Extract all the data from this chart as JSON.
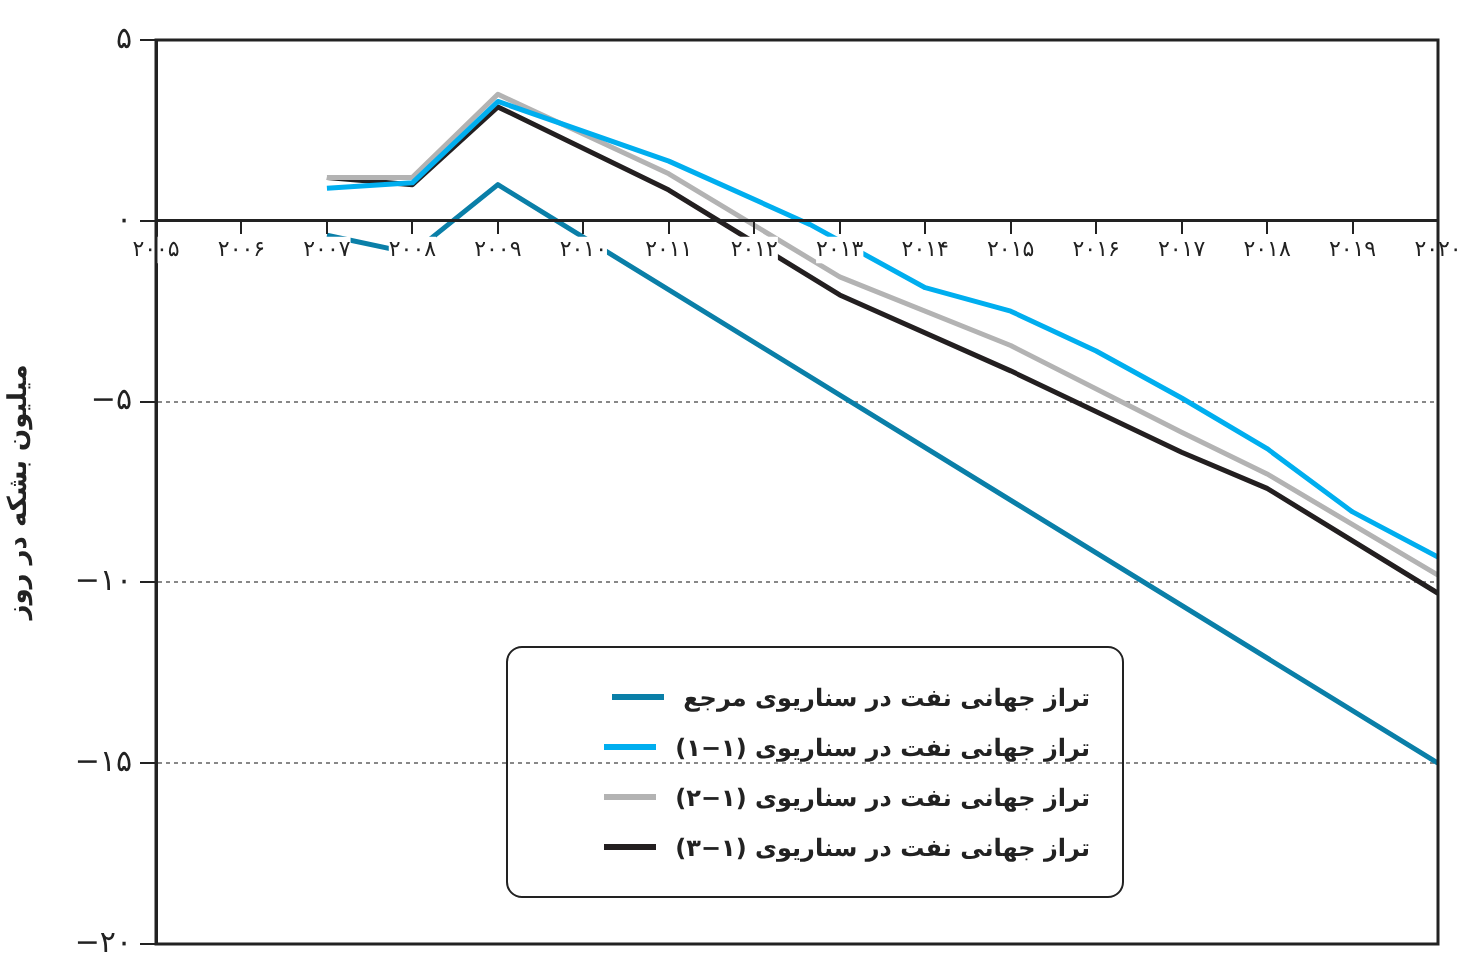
{
  "chart_data": {
    "type": "line",
    "ylabel": "میلیون بشکه در روز",
    "xlim": [
      2005,
      2020
    ],
    "xticks": [
      {
        "value": 2005,
        "label": "۲۰۰۵"
      },
      {
        "value": 2006,
        "label": "۲۰۰۶"
      },
      {
        "value": 2007,
        "label": "۲۰۰۷"
      },
      {
        "value": 2008,
        "label": "۲۰۰۸"
      },
      {
        "value": 2009,
        "label": "۲۰۰۹"
      },
      {
        "value": 2010,
        "label": "۲۰۱۰"
      },
      {
        "value": 2011,
        "label": "۲۰۱۱"
      },
      {
        "value": 2012,
        "label": "۲۰۱۲"
      },
      {
        "value": 2013,
        "label": "۲۰۱۳"
      },
      {
        "value": 2014,
        "label": "۲۰۱۴"
      },
      {
        "value": 2015,
        "label": "۲۰۱۵"
      },
      {
        "value": 2016,
        "label": "۲۰۱۶"
      },
      {
        "value": 2017,
        "label": "۲۰۱۷"
      },
      {
        "value": 2018,
        "label": "۲۰۱۸"
      },
      {
        "value": 2019,
        "label": "۲۰۱۹"
      },
      {
        "value": 2020,
        "label": "۲۰۲۰"
      }
    ],
    "ylim": [
      -20,
      5
    ],
    "yticks": [
      {
        "value": -20,
        "label": "−۲۰"
      },
      {
        "value": -15,
        "label": "−۱۵"
      },
      {
        "value": -10,
        "label": "−۱۰"
      },
      {
        "value": -5,
        "label": "−۵"
      },
      {
        "value": 0,
        "label": "۰"
      },
      {
        "value": 5,
        "label": "۵"
      }
    ],
    "grid": "y",
    "legend": "bottom",
    "marker": "none",
    "line_style": "solid",
    "series": [
      {
        "name": "تراز جهانی نفت در سناریوی مرجع",
        "color": "#0a7fa8",
        "x": [
          2007,
          2008,
          2009,
          2020
        ],
        "values": [
          -0.4,
          -0.9,
          1.0,
          -15.0
        ]
      },
      {
        "name": "تراز جهانی نفت در سناریوی (۱−۱)",
        "color": "#00aeef",
        "x": [
          2007,
          2008,
          2009,
          2011,
          2012.65,
          2014,
          2015,
          2016,
          2017,
          2018,
          2019,
          2020
        ],
        "values": [
          0.9,
          1.05,
          3.3,
          1.65,
          -0.1,
          -1.85,
          -2.5,
          -3.6,
          -4.9,
          -6.3,
          -8.05,
          -9.3
        ]
      },
      {
        "name": "تراز جهانی نفت در سناریوی (۱−۲)",
        "color": "#b3b3b3",
        "x": [
          2007,
          2008,
          2009,
          2011,
          2013,
          2015,
          2017,
          2018,
          2020
        ],
        "values": [
          1.2,
          1.2,
          3.5,
          1.3,
          -1.55,
          -3.45,
          -5.85,
          -7.0,
          -9.8
        ]
      },
      {
        "name": "تراز جهانی نفت در سناریوی (۱−۳)",
        "color": "#231f20",
        "x": [
          2007,
          2008,
          2009,
          2011,
          2013,
          2015,
          2017,
          2018,
          2020
        ],
        "values": [
          1.2,
          1.0,
          3.15,
          0.85,
          -2.05,
          -4.15,
          -6.4,
          -7.4,
          -10.3
        ]
      }
    ]
  }
}
